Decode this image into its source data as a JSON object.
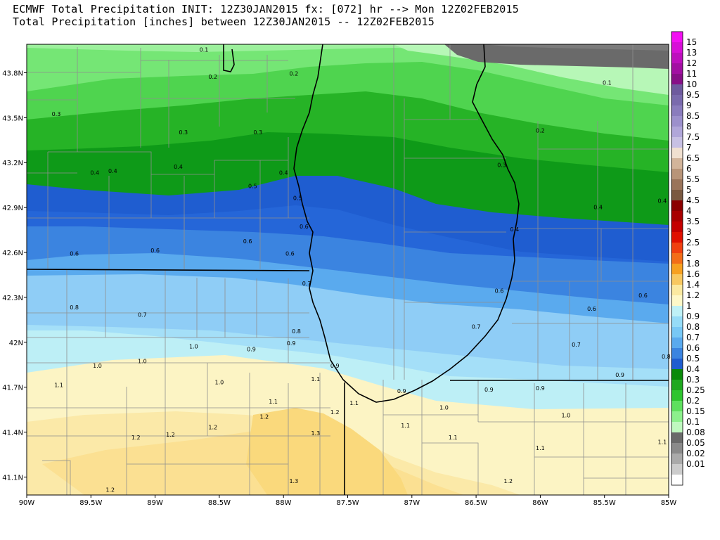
{
  "header": {
    "line1": "ECMWF Total Precipitation INIT: 12Z30JAN2015 fx: [072] hr --> Mon 12Z02FEB2015",
    "line2": "Total Precipitation [inches] between 12Z30JAN2015 -- 12Z02FEB2015"
  },
  "map": {
    "lon_range": [
      -90,
      -85
    ],
    "lat_range": [
      40.98,
      43.99
    ],
    "x_ticks": [
      "90W",
      "89.5W",
      "89W",
      "88.5W",
      "88W",
      "87.5W",
      "87W",
      "86.5W",
      "86W",
      "85.5W",
      "85W"
    ],
    "y_ticks": [
      "43.8N",
      "43.5N",
      "43.2N",
      "42.9N",
      "42.6N",
      "42.3N",
      "42N",
      "41.7N",
      "41.4N",
      "41.1N"
    ],
    "x_tick_values": [
      -90,
      -89.5,
      -89,
      -88.5,
      -88,
      -87.5,
      -87,
      -86.5,
      -86,
      -85.5,
      -85
    ],
    "y_tick_values": [
      43.8,
      43.5,
      43.2,
      42.9,
      42.6,
      42.3,
      42.0,
      41.7,
      41.4,
      41.1
    ],
    "contour_labels": [
      {
        "t": "0.1",
        "lon": -88.62,
        "lat": 43.94
      },
      {
        "t": "0.2",
        "lon": -88.55,
        "lat": 43.76
      },
      {
        "t": "0.2",
        "lon": -87.92,
        "lat": 43.78
      },
      {
        "t": "0.1",
        "lon": -85.48,
        "lat": 43.72
      },
      {
        "t": "0.3",
        "lon": -89.77,
        "lat": 43.51
      },
      {
        "t": "0.3",
        "lon": -88.78,
        "lat": 43.39
      },
      {
        "t": "0.3",
        "lon": -88.2,
        "lat": 43.39
      },
      {
        "t": "0.2",
        "lon": -86.0,
        "lat": 43.4
      },
      {
        "t": "0.3",
        "lon": -86.3,
        "lat": 43.17
      },
      {
        "t": "0.4",
        "lon": -89.47,
        "lat": 43.12
      },
      {
        "t": "0.4",
        "lon": -89.33,
        "lat": 43.13
      },
      {
        "t": "0.4",
        "lon": -88.82,
        "lat": 43.16
      },
      {
        "t": "0.5",
        "lon": -88.24,
        "lat": 43.03
      },
      {
        "t": "0.4",
        "lon": -88.0,
        "lat": 43.12
      },
      {
        "t": "0.5",
        "lon": -87.89,
        "lat": 42.95
      },
      {
        "t": "0.4",
        "lon": -85.55,
        "lat": 42.89
      },
      {
        "t": "0.4",
        "lon": -85.05,
        "lat": 42.93
      },
      {
        "t": "0.6",
        "lon": -87.84,
        "lat": 42.76
      },
      {
        "t": "0.4",
        "lon": -86.2,
        "lat": 42.74
      },
      {
        "t": "0.6",
        "lon": -88.28,
        "lat": 42.66
      },
      {
        "t": "0.6",
        "lon": -89.0,
        "lat": 42.6
      },
      {
        "t": "0.6",
        "lon": -89.63,
        "lat": 42.58
      },
      {
        "t": "0.6",
        "lon": -87.95,
        "lat": 42.58
      },
      {
        "t": "0.7",
        "lon": -87.82,
        "lat": 42.38
      },
      {
        "t": "0.6",
        "lon": -86.32,
        "lat": 42.33
      },
      {
        "t": "0.6",
        "lon": -85.2,
        "lat": 42.3
      },
      {
        "t": "0.8",
        "lon": -89.63,
        "lat": 42.22
      },
      {
        "t": "0.7",
        "lon": -89.1,
        "lat": 42.17
      },
      {
        "t": "0.6",
        "lon": -85.6,
        "lat": 42.21
      },
      {
        "t": "0.7",
        "lon": -86.5,
        "lat": 42.09
      },
      {
        "t": "0.8",
        "lon": -87.9,
        "lat": 42.06
      },
      {
        "t": "0.9",
        "lon": -87.94,
        "lat": 41.98
      },
      {
        "t": "1.0",
        "lon": -88.7,
        "lat": 41.96
      },
      {
        "t": "0.9",
        "lon": -88.25,
        "lat": 41.94
      },
      {
        "t": "0.7",
        "lon": -85.72,
        "lat": 41.97
      },
      {
        "t": "1.0",
        "lon": -89.1,
        "lat": 41.86
      },
      {
        "t": "1.0",
        "lon": -89.45,
        "lat": 41.83
      },
      {
        "t": "0.9",
        "lon": -87.6,
        "lat": 41.83
      },
      {
        "t": "0.8",
        "lon": -85.02,
        "lat": 41.89
      },
      {
        "t": "0.9",
        "lon": -85.38,
        "lat": 41.77
      },
      {
        "t": "1.1",
        "lon": -87.75,
        "lat": 41.74
      },
      {
        "t": "1.0",
        "lon": -88.5,
        "lat": 41.72
      },
      {
        "t": "1.1",
        "lon": -89.75,
        "lat": 41.7
      },
      {
        "t": "0.9",
        "lon": -87.08,
        "lat": 41.66
      },
      {
        "t": "0.9",
        "lon": -86.4,
        "lat": 41.67
      },
      {
        "t": "0.9",
        "lon": -86.0,
        "lat": 41.68
      },
      {
        "t": "1.1",
        "lon": -88.08,
        "lat": 41.59
      },
      {
        "t": "1.1",
        "lon": -87.45,
        "lat": 41.58
      },
      {
        "t": "1.0",
        "lon": -86.75,
        "lat": 41.55
      },
      {
        "t": "1.2",
        "lon": -88.15,
        "lat": 41.49
      },
      {
        "t": "1.0",
        "lon": -85.8,
        "lat": 41.5
      },
      {
        "t": "1.2",
        "lon": -87.6,
        "lat": 41.52
      },
      {
        "t": "1.1",
        "lon": -87.05,
        "lat": 41.43
      },
      {
        "t": "1.2",
        "lon": -88.55,
        "lat": 41.42
      },
      {
        "t": "1.3",
        "lon": -87.75,
        "lat": 41.38
      },
      {
        "t": "1.2",
        "lon": -88.88,
        "lat": 41.37
      },
      {
        "t": "1.2",
        "lon": -89.15,
        "lat": 41.35
      },
      {
        "t": "1.1",
        "lon": -86.68,
        "lat": 41.35
      },
      {
        "t": "1.1",
        "lon": -85.05,
        "lat": 41.32
      },
      {
        "t": "1.1",
        "lon": -86.0,
        "lat": 41.28
      },
      {
        "t": "1.3",
        "lon": -87.92,
        "lat": 41.06
      },
      {
        "t": "1.2",
        "lon": -86.25,
        "lat": 41.06
      },
      {
        "t": "1.2",
        "lon": -89.35,
        "lat": 41.0
      }
    ]
  },
  "colorbar": {
    "labels": [
      "15",
      "13",
      "12",
      "11",
      "10",
      "9.5",
      "9",
      "8.5",
      "8",
      "7.5",
      "7",
      "6.5",
      "6",
      "5.5",
      "5",
      "4.5",
      "4",
      "3.5",
      "3",
      "2.5",
      "2",
      "1.8",
      "1.6",
      "1.4",
      "1.2",
      "1",
      "0.9",
      "0.8",
      "0.7",
      "0.6",
      "0.5",
      "0.4",
      "0.3",
      "0.25",
      "0.2",
      "0.15",
      "0.1",
      "0.08",
      "0.05",
      "0.02",
      "0.01"
    ],
    "colors": [
      "#f20ff2",
      "#d70fd7",
      "#bd0fbd",
      "#a20fa2",
      "#870f87",
      "#6e5a9e",
      "#7a6aad",
      "#8a7cbd",
      "#9c90cc",
      "#b0a6d9",
      "#c7c0e3",
      "#f0e0d0",
      "#d2b49a",
      "#b89478",
      "#9a745a",
      "#7a5840",
      "#8b0000",
      "#a80000",
      "#c40000",
      "#e01000",
      "#f04010",
      "#f36d18",
      "#f7a020",
      "#f8c860",
      "#fbe9a0",
      "#fef8c8",
      "#bff1f6",
      "#96dcf7",
      "#78c8f5",
      "#5aaaee",
      "#3b84e0",
      "#1f5dd0",
      "#0a8a0a",
      "#1fa81f",
      "#2ec52e",
      "#5ee05e",
      "#8cf08c",
      "#bff8bf",
      "#6a6a6a",
      "#8a8a8a",
      "#aaaaaa",
      "#cccccc",
      "#ffffff"
    ]
  }
}
